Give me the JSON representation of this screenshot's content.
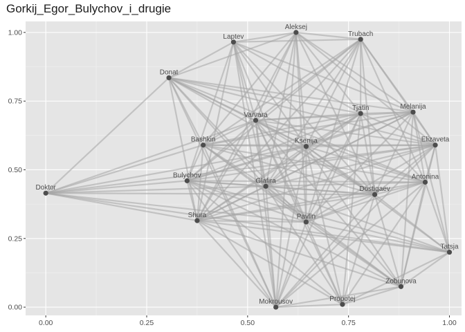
{
  "chart_data": {
    "type": "network",
    "title": "Gorkij_Egor_Bulychov_i_drugie",
    "xlim": [
      -0.05,
      1.03
    ],
    "ylim": [
      -0.03,
      1.04
    ],
    "x_ticks": [
      0.0,
      0.25,
      0.5,
      0.75,
      1.0
    ],
    "x_tick_labels": [
      "0.00",
      "0.25",
      "0.50",
      "0.75",
      "1.00"
    ],
    "y_ticks": [
      0.0,
      0.25,
      0.5,
      0.75,
      1.0
    ],
    "y_tick_labels": [
      "0.00",
      "0.25",
      "0.50",
      "0.75",
      "1.00"
    ],
    "grid": true,
    "background": "#e5e5e5",
    "node_color": "#4d4d4d",
    "edge_color": "#a6a6a6",
    "nodes": [
      {
        "name": "Aleksej",
        "x": 0.62,
        "y": 1.0
      },
      {
        "name": "Laptev",
        "x": 0.465,
        "y": 0.965
      },
      {
        "name": "Trubach",
        "x": 0.78,
        "y": 0.975
      },
      {
        "name": "Donat",
        "x": 0.305,
        "y": 0.835
      },
      {
        "name": "Tjatin",
        "x": 0.78,
        "y": 0.705
      },
      {
        "name": "Melanija",
        "x": 0.91,
        "y": 0.71
      },
      {
        "name": "Varvara",
        "x": 0.52,
        "y": 0.68
      },
      {
        "name": "Bashkin",
        "x": 0.39,
        "y": 0.59
      },
      {
        "name": "Ksenija",
        "x": 0.645,
        "y": 0.585
      },
      {
        "name": "Elizaveta",
        "x": 0.965,
        "y": 0.59
      },
      {
        "name": "Bulychov",
        "x": 0.35,
        "y": 0.46
      },
      {
        "name": "Antonina",
        "x": 0.94,
        "y": 0.455
      },
      {
        "name": "Glafira",
        "x": 0.545,
        "y": 0.44
      },
      {
        "name": "Dostigaev",
        "x": 0.815,
        "y": 0.41
      },
      {
        "name": "Doktor",
        "x": 0.0,
        "y": 0.415
      },
      {
        "name": "Shura",
        "x": 0.375,
        "y": 0.315
      },
      {
        "name": "Pavlin",
        "x": 0.645,
        "y": 0.31
      },
      {
        "name": "Tatsja",
        "x": 1.0,
        "y": 0.2
      },
      {
        "name": "Zobunova",
        "x": 0.88,
        "y": 0.075
      },
      {
        "name": "Mokrousov",
        "x": 0.57,
        "y": 0.0
      },
      {
        "name": "Propotej",
        "x": 0.735,
        "y": 0.01
      }
    ],
    "edges": [
      [
        "Doktor",
        "Donat"
      ],
      [
        "Doktor",
        "Bashkin"
      ],
      [
        "Doktor",
        "Bulychov"
      ],
      [
        "Doktor",
        "Glafira"
      ],
      [
        "Doktor",
        "Shura"
      ],
      [
        "Doktor",
        "Varvara"
      ],
      [
        "Doktor",
        "Ksenija"
      ],
      [
        "Doktor",
        "Dostigaev"
      ],
      [
        "Doktor",
        "Pavlin"
      ],
      [
        "Doktor",
        "Tatsja"
      ],
      [
        "Doktor",
        "Elizaveta"
      ],
      [
        "Donat",
        "Laptev"
      ],
      [
        "Donat",
        "Aleksej"
      ],
      [
        "Donat",
        "Varvara"
      ],
      [
        "Donat",
        "Tjatin"
      ],
      [
        "Donat",
        "Melanija"
      ],
      [
        "Donat",
        "Ksenija"
      ],
      [
        "Donat",
        "Bashkin"
      ],
      [
        "Donat",
        "Glafira"
      ],
      [
        "Donat",
        "Shura"
      ],
      [
        "Donat",
        "Elizaveta"
      ],
      [
        "Donat",
        "Dostigaev"
      ],
      [
        "Donat",
        "Pavlin"
      ],
      [
        "Donat",
        "Antonina"
      ],
      [
        "Donat",
        "Mokrousov"
      ],
      [
        "Laptev",
        "Aleksej"
      ],
      [
        "Laptev",
        "Trubach"
      ],
      [
        "Laptev",
        "Varvara"
      ],
      [
        "Laptev",
        "Ksenija"
      ],
      [
        "Laptev",
        "Glafira"
      ],
      [
        "Laptev",
        "Shura"
      ],
      [
        "Laptev",
        "Bulychov"
      ],
      [
        "Laptev",
        "Tjatin"
      ],
      [
        "Laptev",
        "Dostigaev"
      ],
      [
        "Laptev",
        "Pavlin"
      ],
      [
        "Laptev",
        "Mokrousov"
      ],
      [
        "Laptev",
        "Melanija"
      ],
      [
        "Aleksej",
        "Trubach"
      ],
      [
        "Aleksej",
        "Varvara"
      ],
      [
        "Aleksej",
        "Ksenija"
      ],
      [
        "Aleksej",
        "Glafira"
      ],
      [
        "Aleksej",
        "Bashkin"
      ],
      [
        "Aleksej",
        "Tjatin"
      ],
      [
        "Aleksej",
        "Melanija"
      ],
      [
        "Aleksej",
        "Dostigaev"
      ],
      [
        "Aleksej",
        "Pavlin"
      ],
      [
        "Aleksej",
        "Shura"
      ],
      [
        "Aleksej",
        "Elizaveta"
      ],
      [
        "Aleksej",
        "Mokrousov"
      ],
      [
        "Trubach",
        "Varvara"
      ],
      [
        "Trubach",
        "Tjatin"
      ],
      [
        "Trubach",
        "Melanija"
      ],
      [
        "Trubach",
        "Ksenija"
      ],
      [
        "Trubach",
        "Glafira"
      ],
      [
        "Trubach",
        "Bashkin"
      ],
      [
        "Trubach",
        "Bulychov"
      ],
      [
        "Trubach",
        "Shura"
      ],
      [
        "Trubach",
        "Dostigaev"
      ],
      [
        "Trubach",
        "Elizaveta"
      ],
      [
        "Trubach",
        "Pavlin"
      ],
      [
        "Trubach",
        "Antonina"
      ],
      [
        "Varvara",
        "Bashkin"
      ],
      [
        "Varvara",
        "Ksenija"
      ],
      [
        "Varvara",
        "Tjatin"
      ],
      [
        "Varvara",
        "Melanija"
      ],
      [
        "Varvara",
        "Elizaveta"
      ],
      [
        "Varvara",
        "Glafira"
      ],
      [
        "Varvara",
        "Bulychov"
      ],
      [
        "Varvara",
        "Shura"
      ],
      [
        "Varvara",
        "Dostigaev"
      ],
      [
        "Varvara",
        "Pavlin"
      ],
      [
        "Varvara",
        "Antonina"
      ],
      [
        "Varvara",
        "Mokrousov"
      ],
      [
        "Varvara",
        "Propotej"
      ],
      [
        "Varvara",
        "Zobunova"
      ],
      [
        "Bashkin",
        "Ksenija"
      ],
      [
        "Bashkin",
        "Glafira"
      ],
      [
        "Bashkin",
        "Bulychov"
      ],
      [
        "Bashkin",
        "Shura"
      ],
      [
        "Bashkin",
        "Tjatin"
      ],
      [
        "Bashkin",
        "Melanija"
      ],
      [
        "Bashkin",
        "Elizaveta"
      ],
      [
        "Bashkin",
        "Dostigaev"
      ],
      [
        "Bashkin",
        "Pavlin"
      ],
      [
        "Bashkin",
        "Antonina"
      ],
      [
        "Bashkin",
        "Zobunova"
      ],
      [
        "Bashkin",
        "Mokrousov"
      ],
      [
        "Ksenija",
        "Tjatin"
      ],
      [
        "Ksenija",
        "Melanija"
      ],
      [
        "Ksenija",
        "Elizaveta"
      ],
      [
        "Ksenija",
        "Glafira"
      ],
      [
        "Ksenija",
        "Bulychov"
      ],
      [
        "Ksenija",
        "Shura"
      ],
      [
        "Ksenija",
        "Dostigaev"
      ],
      [
        "Ksenija",
        "Pavlin"
      ],
      [
        "Ksenija",
        "Antonina"
      ],
      [
        "Ksenija",
        "Tatsja"
      ],
      [
        "Ksenija",
        "Zobunova"
      ],
      [
        "Ksenija",
        "Mokrousov"
      ],
      [
        "Ksenija",
        "Propotej"
      ],
      [
        "Tjatin",
        "Melanija"
      ],
      [
        "Tjatin",
        "Elizaveta"
      ],
      [
        "Tjatin",
        "Glafira"
      ],
      [
        "Tjatin",
        "Shura"
      ],
      [
        "Tjatin",
        "Dostigaev"
      ],
      [
        "Tjatin",
        "Pavlin"
      ],
      [
        "Tjatin",
        "Antonina"
      ],
      [
        "Tjatin",
        "Bulychov"
      ],
      [
        "Tjatin",
        "Mokrousov"
      ],
      [
        "Tjatin",
        "Propotej"
      ],
      [
        "Melanija",
        "Elizaveta"
      ],
      [
        "Melanija",
        "Antonina"
      ],
      [
        "Melanija",
        "Glafira"
      ],
      [
        "Melanija",
        "Bulychov"
      ],
      [
        "Melanija",
        "Shura"
      ],
      [
        "Melanija",
        "Dostigaev"
      ],
      [
        "Melanija",
        "Pavlin"
      ],
      [
        "Melanija",
        "Tatsja"
      ],
      [
        "Melanija",
        "Zobunova"
      ],
      [
        "Elizaveta",
        "Antonina"
      ],
      [
        "Elizaveta",
        "Tatsja"
      ],
      [
        "Elizaveta",
        "Glafira"
      ],
      [
        "Elizaveta",
        "Bulychov"
      ],
      [
        "Elizaveta",
        "Shura"
      ],
      [
        "Elizaveta",
        "Dostigaev"
      ],
      [
        "Elizaveta",
        "Pavlin"
      ],
      [
        "Elizaveta",
        "Zobunova"
      ],
      [
        "Elizaveta",
        "Mokrousov"
      ],
      [
        "Antonina",
        "Tatsja"
      ],
      [
        "Antonina",
        "Glafira"
      ],
      [
        "Antonina",
        "Bulychov"
      ],
      [
        "Antonina",
        "Dostigaev"
      ],
      [
        "Antonina",
        "Pavlin"
      ],
      [
        "Antonina",
        "Zobunova"
      ],
      [
        "Antonina",
        "Shura"
      ],
      [
        "Antonina",
        "Mokrousov"
      ],
      [
        "Antonina",
        "Propotej"
      ],
      [
        "Glafira",
        "Bulychov"
      ],
      [
        "Glafira",
        "Shura"
      ],
      [
        "Glafira",
        "Dostigaev"
      ],
      [
        "Glafira",
        "Pavlin"
      ],
      [
        "Glafira",
        "Tatsja"
      ],
      [
        "Glafira",
        "Zobunova"
      ],
      [
        "Glafira",
        "Mokrousov"
      ],
      [
        "Glafira",
        "Propotej"
      ],
      [
        "Bulychov",
        "Shura"
      ],
      [
        "Bulychov",
        "Dostigaev"
      ],
      [
        "Bulychov",
        "Pavlin"
      ],
      [
        "Bulychov",
        "Mokrousov"
      ],
      [
        "Bulychov",
        "Propotej"
      ],
      [
        "Bulychov",
        "Zobunova"
      ],
      [
        "Bulychov",
        "Tatsja"
      ],
      [
        "Shura",
        "Pavlin"
      ],
      [
        "Shura",
        "Dostigaev"
      ],
      [
        "Shura",
        "Tatsja"
      ],
      [
        "Shura",
        "Zobunova"
      ],
      [
        "Shura",
        "Mokrousov"
      ],
      [
        "Shura",
        "Propotej"
      ],
      [
        "Dostigaev",
        "Pavlin"
      ],
      [
        "Dostigaev",
        "Tatsja"
      ],
      [
        "Dostigaev",
        "Zobunova"
      ],
      [
        "Dostigaev",
        "Mokrousov"
      ],
      [
        "Dostigaev",
        "Propotej"
      ],
      [
        "Pavlin",
        "Tatsja"
      ],
      [
        "Pavlin",
        "Zobunova"
      ],
      [
        "Pavlin",
        "Mokrousov"
      ],
      [
        "Pavlin",
        "Propotej"
      ],
      [
        "Tatsja",
        "Zobunova"
      ],
      [
        "Tatsja",
        "Propotej"
      ],
      [
        "Zobunova",
        "Propotej"
      ],
      [
        "Zobunova",
        "Mokrousov"
      ],
      [
        "Mokrousov",
        "Propotej"
      ]
    ]
  }
}
